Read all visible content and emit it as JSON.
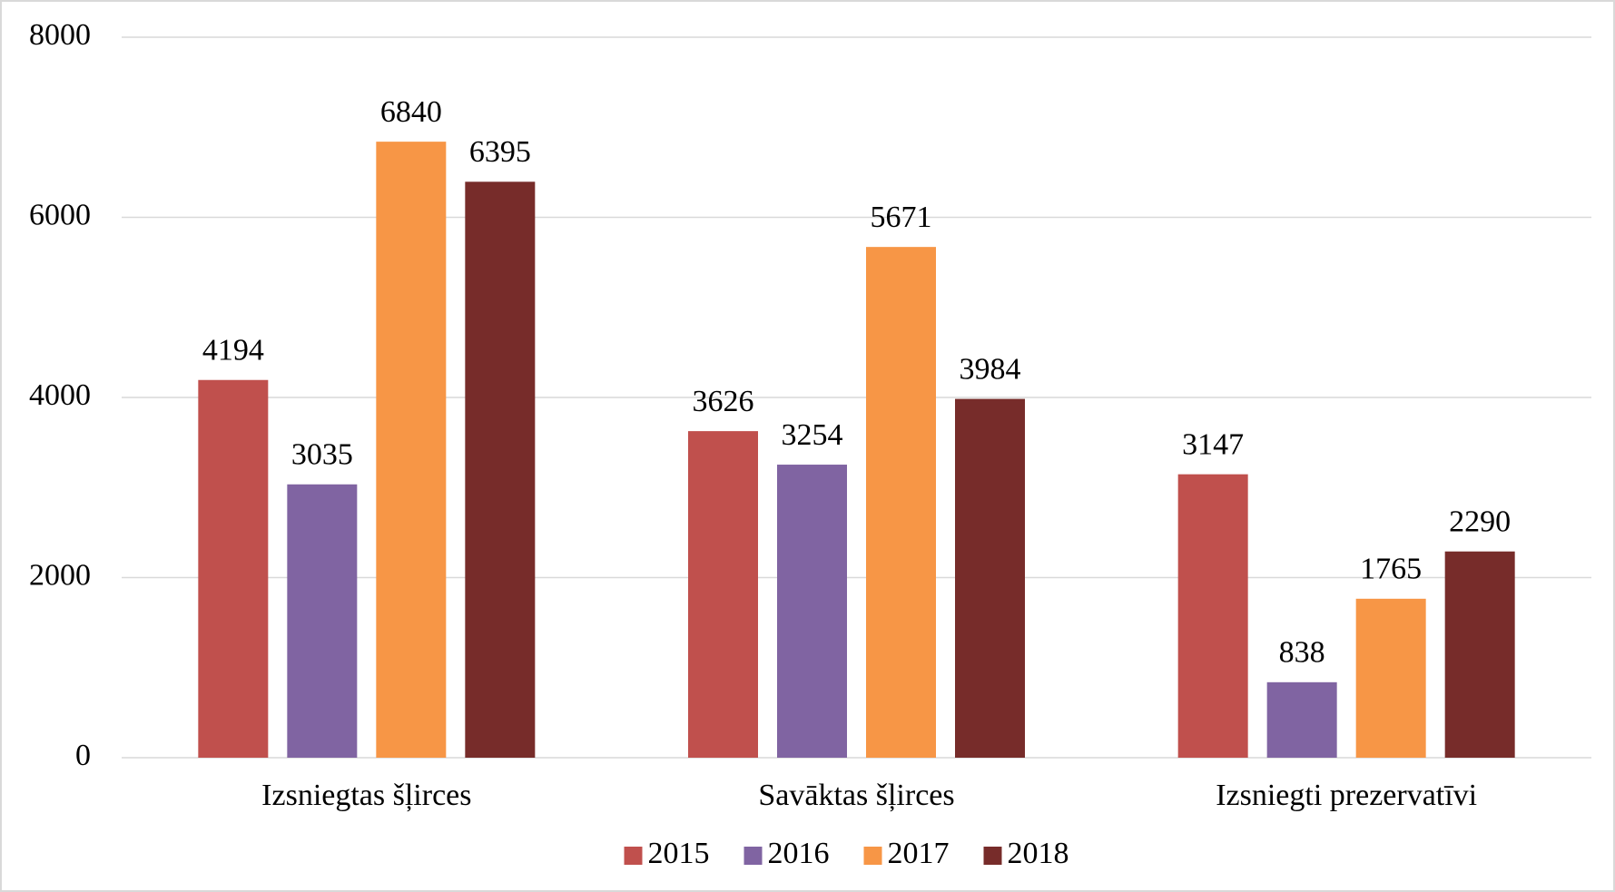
{
  "chart_data": {
    "type": "bar",
    "categories": [
      "Izsniegtas šļirces",
      "Savāktas šļirces",
      "Izsniegti prezervatīvi"
    ],
    "series": [
      {
        "name": "2015",
        "color": "#c0504d",
        "values": [
          4194,
          3626,
          3147
        ]
      },
      {
        "name": "2016",
        "color": "#8064a2",
        "values": [
          3035,
          3254,
          838
        ]
      },
      {
        "name": "2017",
        "color": "#f79646",
        "values": [
          6840,
          5671,
          1765
        ]
      },
      {
        "name": "2018",
        "color": "#772c2a",
        "values": [
          6395,
          3984,
          2290
        ]
      }
    ],
    "ylim": [
      0,
      8000
    ],
    "yticks": [
      0,
      2000,
      4000,
      6000,
      8000
    ],
    "grid": true,
    "legend": "bottom"
  }
}
